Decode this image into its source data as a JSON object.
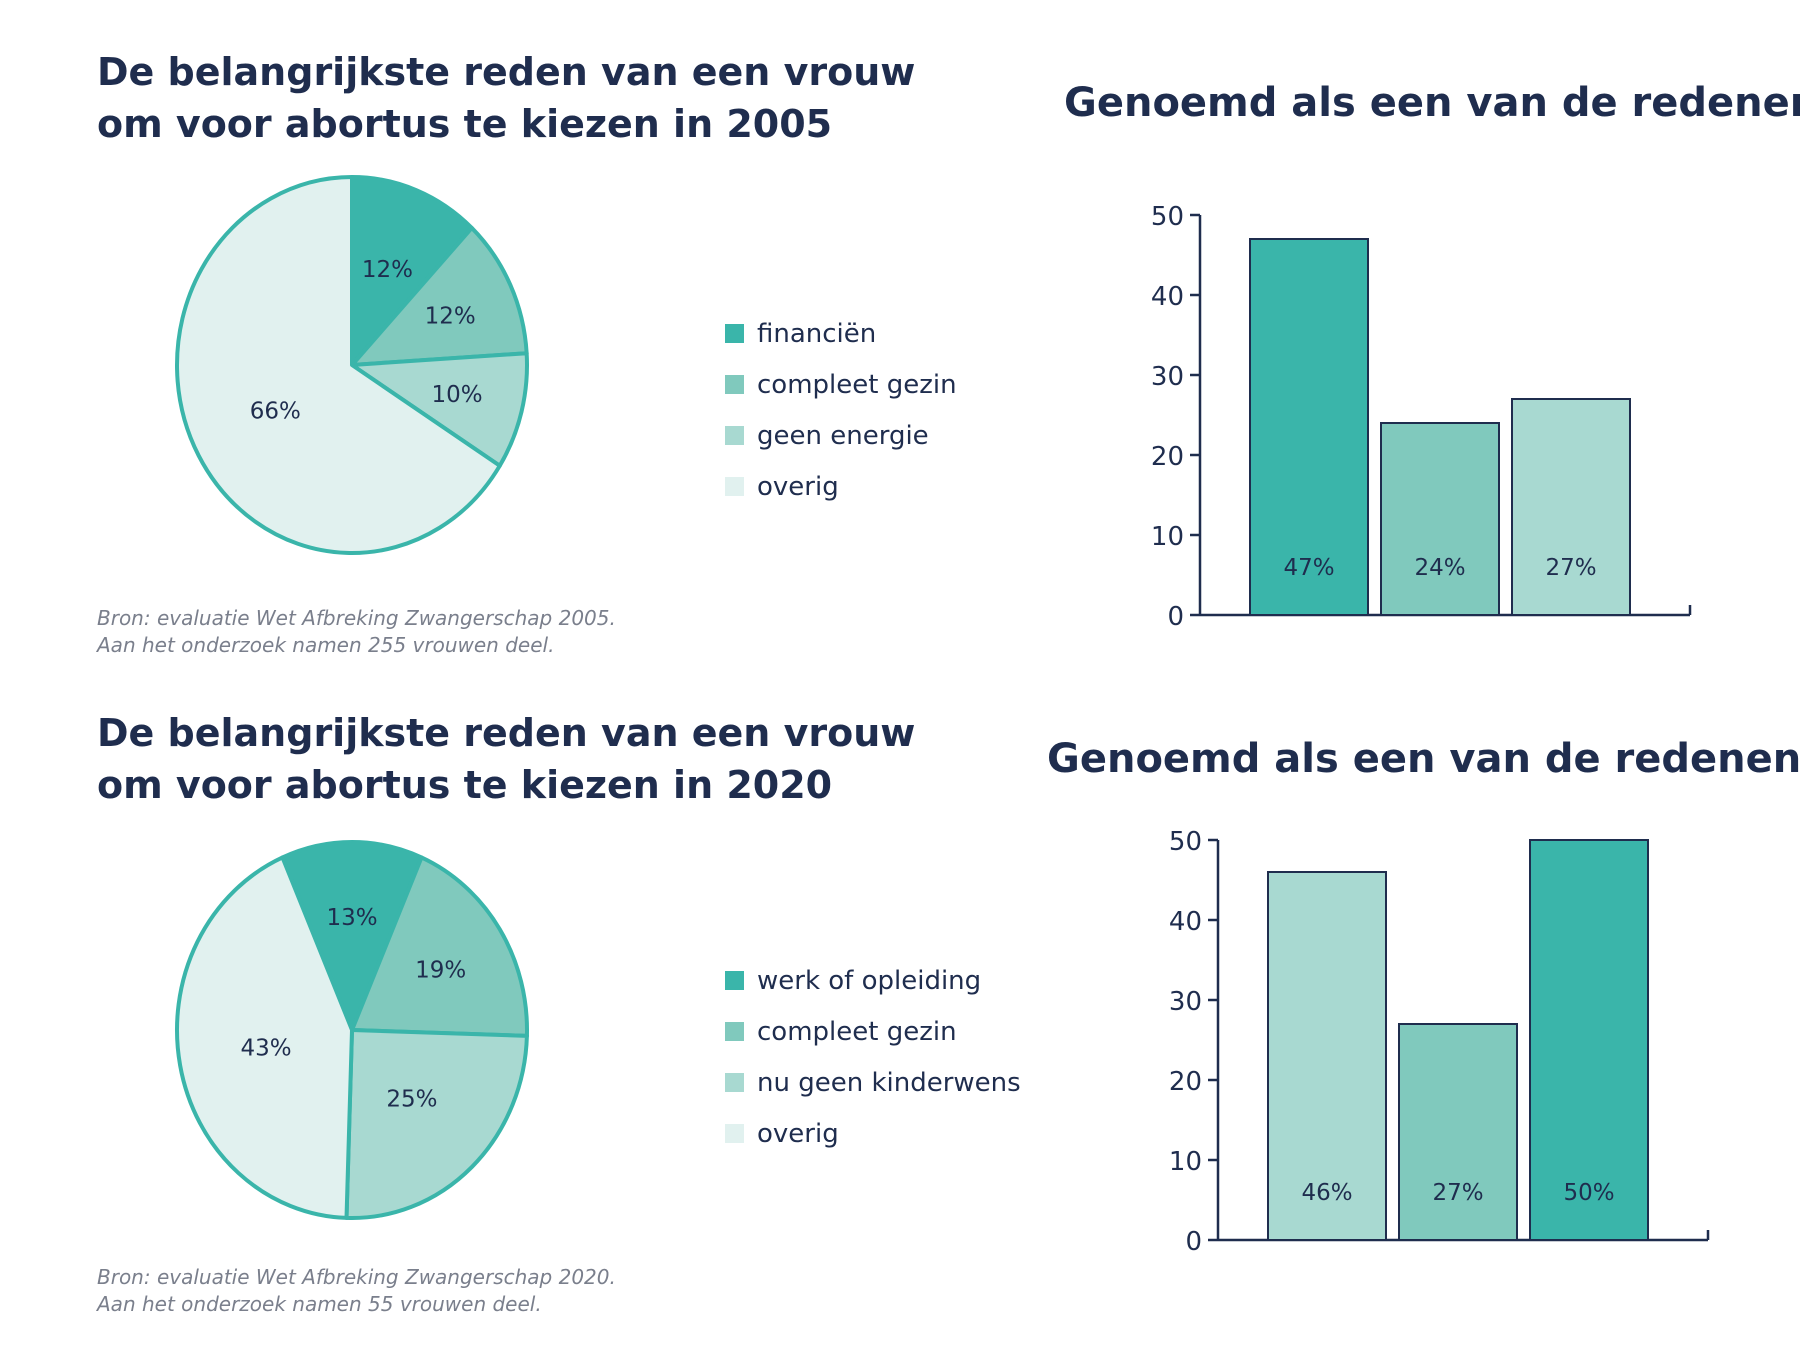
{
  "colors": {
    "navy": "#1f2d4e",
    "teal_dark": "#3ab5aa",
    "teal_mid": "#80c9bd",
    "teal_light": "#a8d9d1",
    "teal_pale": "#e1f1ef",
    "pie_stroke": "#3ab5aa"
  },
  "section_2005": {
    "title_line1": "De belangrijkste reden van een vrouw",
    "title_line2": "om voor abortus te kiezen in 2005",
    "source_line1": "Bron: evaluatie Wet Afbreking Zwangerschap 2005.",
    "source_line2": "Aan het onderzoek namen 255 vrouwen deel.",
    "bar_title": "Genoemd als een van de redenen"
  },
  "section_2020": {
    "title_line1": "De belangrijkste reden van een vrouw",
    "title_line2": "om voor abortus te kiezen in 2020",
    "source_line1": "Bron: evaluatie Wet Afbreking Zwangerschap 2020.",
    "source_line2": "Aan het onderzoek namen 55 vrouwen deel.",
    "bar_title": "Genoemd als een van de redenen"
  },
  "chart_data": [
    {
      "type": "pie",
      "title": "De belangrijkste reden van een vrouw om voor abortus te kiezen in 2005",
      "categories": [
        "financiën",
        "compleet gezin",
        "geen energie",
        "overig"
      ],
      "values": [
        12,
        12,
        10,
        66
      ],
      "labels": [
        "12%",
        "12%",
        "10%",
        "66%"
      ],
      "colors": [
        "#3ab5aa",
        "#80c9bd",
        "#a8d9d1",
        "#e1f1ef"
      ]
    },
    {
      "type": "bar",
      "title": "Genoemd als een van de redenen",
      "categories": [
        "financiën",
        "compleet gezin",
        "geen energie"
      ],
      "values": [
        47,
        24,
        27
      ],
      "labels": [
        "47%",
        "24%",
        "27%"
      ],
      "colors": [
        "#3ab5aa",
        "#80c9bd",
        "#a8d9d1"
      ],
      "ylim": [
        0,
        50
      ],
      "yticks": [
        "0",
        "10",
        "20",
        "30",
        "40",
        "50"
      ],
      "xlabel": "",
      "ylabel": ""
    },
    {
      "type": "pie",
      "title": "De belangrijkste reden van een vrouw om voor abortus te kiezen in 2020",
      "categories": [
        "werk of opleiding",
        "compleet gezin",
        "nu geen kinderwens",
        "overig"
      ],
      "values": [
        13,
        19,
        25,
        43
      ],
      "labels": [
        "13%",
        "19%",
        "25%",
        "43%"
      ],
      "colors": [
        "#3ab5aa",
        "#80c9bd",
        "#a8d9d1",
        "#e1f1ef"
      ]
    },
    {
      "type": "bar",
      "title": "Genoemd als een van de redenen",
      "categories": [
        "nu geen kinderwens",
        "compleet gezin",
        "werk of opleiding"
      ],
      "values": [
        46,
        27,
        50
      ],
      "labels": [
        "46%",
        "27%",
        "50%"
      ],
      "colors": [
        "#a8d9d1",
        "#80c9bd",
        "#3ab5aa"
      ],
      "ylim": [
        0,
        50
      ],
      "yticks": [
        "0",
        "10",
        "20",
        "30",
        "40",
        "50"
      ],
      "xlabel": "",
      "ylabel": ""
    }
  ]
}
